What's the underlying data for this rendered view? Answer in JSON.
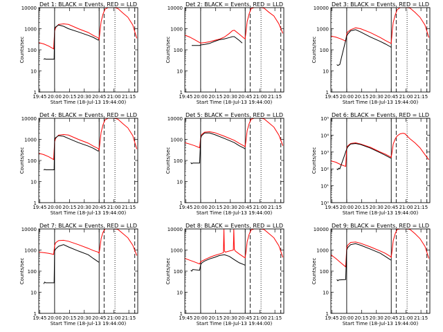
{
  "figure": {
    "xlabel": "Start Time (18-Jul-13 19:44:00)",
    "ylabel": "Counts/sec",
    "x_ticks": [
      "19:45",
      "20:00",
      "20:15",
      "20:30",
      "20:45",
      "21:00",
      "21:15"
    ],
    "x_tick_values": [
      1,
      16,
      31,
      46,
      61,
      76,
      91
    ],
    "x_range": [
      0,
      100
    ],
    "markers": {
      "solid_x": [
        16,
        61
      ],
      "dashed_x": [
        66,
        97
      ],
      "dotted_x": [
        77
      ]
    },
    "colors": {
      "events": "#000000",
      "lld": "#ff0000",
      "axes": "#000000"
    }
  },
  "chart_data": [
    {
      "type": "line",
      "title": "Det 1: BLACK = Events, RED = LLD",
      "yscale": "log",
      "ylim": [
        1,
        10000
      ],
      "y_ticks": [
        "1",
        "10",
        "100",
        "1000",
        "10000"
      ],
      "y_tick_values": [
        1,
        10,
        100,
        1000,
        10000
      ],
      "events_x": [
        5,
        6,
        7,
        15.5,
        16,
        17,
        20,
        25,
        30,
        40,
        50,
        55,
        60,
        61,
        62
      ],
      "events_y": [
        35,
        38,
        36,
        36,
        1000,
        1200,
        1500,
        1300,
        1000,
        700,
        480,
        390,
        290,
        300,
        null
      ],
      "series": [
        {
          "name": "RED = LLD",
          "x": [
            0,
            5,
            10,
            15,
            16,
            17,
            20,
            25,
            30,
            40,
            50,
            55,
            60,
            61,
            62,
            63,
            65,
            67,
            70,
            73,
            75,
            77,
            80,
            85,
            90,
            95,
            99
          ],
          "y": [
            220,
            190,
            150,
            110,
            750,
            1100,
            1600,
            1700,
            1600,
            1000,
            660,
            480,
            370,
            300,
            900,
            2200,
            5000,
            8500,
            10000,
            10000,
            10000,
            10000,
            9000,
            5500,
            3500,
            1500,
            350
          ]
        }
      ]
    },
    {
      "type": "line",
      "title": "Det 2: BLACK = Events, RED = LLD",
      "yscale": "log",
      "ylim": [
        1,
        10000
      ],
      "y_ticks": [
        "1",
        "10",
        "100",
        "1000",
        "10000"
      ],
      "y_tick_values": [
        1,
        10,
        100,
        1000,
        10000
      ],
      "events_x": [
        7,
        15,
        16,
        20,
        25,
        30,
        35,
        40,
        45,
        48,
        50,
        55,
        58
      ],
      "events_y": [
        160,
        160,
        170,
        180,
        200,
        250,
        300,
        330,
        380,
        420,
        420,
        280,
        210
      ],
      "series": [
        {
          "name": "RED = LLD",
          "x": [
            0,
            5,
            10,
            15,
            16,
            20,
            25,
            30,
            35,
            40,
            45,
            48,
            50,
            55,
            60,
            61,
            62,
            63,
            65,
            67,
            70,
            73,
            75,
            77,
            80,
            85,
            90,
            95,
            99
          ],
          "y": [
            500,
            400,
            300,
            220,
            210,
            220,
            240,
            280,
            320,
            400,
            600,
            800,
            850,
            550,
            350,
            330,
            900,
            2200,
            5000,
            9000,
            10000,
            10000,
            10000,
            10000,
            9500,
            6000,
            4000,
            1700,
            600
          ]
        }
      ]
    },
    {
      "type": "line",
      "title": "Det 3: BLACK = Events, RED = LLD",
      "yscale": "log",
      "ylim": [
        1,
        10000
      ],
      "y_ticks": [
        "1",
        "10",
        "100",
        "1000",
        "10000"
      ],
      "y_tick_values": [
        1,
        10,
        100,
        1000,
        10000
      ],
      "events_x": [
        6,
        7,
        8,
        9,
        16,
        17,
        20,
        25,
        30,
        40,
        50,
        55,
        60,
        61
      ],
      "events_y": [
        20,
        18,
        19,
        20,
        450,
        550,
        800,
        900,
        700,
        400,
        250,
        190,
        140,
        130
      ],
      "series": [
        {
          "name": "RED = LLD",
          "x": [
            0,
            5,
            10,
            15,
            16,
            17,
            20,
            25,
            30,
            40,
            50,
            55,
            60,
            61,
            62,
            63,
            65,
            67,
            70,
            73,
            75,
            77,
            80,
            85,
            90,
            95,
            99
          ],
          "y": [
            450,
            400,
            330,
            260,
            550,
            700,
            900,
            1100,
            1000,
            650,
            380,
            280,
            210,
            200,
            800,
            2000,
            4500,
            8000,
            10000,
            10000,
            10000,
            10000,
            9500,
            6000,
            3500,
            1500,
            380
          ]
        }
      ]
    },
    {
      "type": "line",
      "title": "Det 4: BLACK = Events, RED = LLD",
      "yscale": "log",
      "ylim": [
        1,
        10000
      ],
      "y_ticks": [
        "1",
        "10",
        "100",
        "1000",
        "10000"
      ],
      "y_tick_values": [
        1,
        10,
        100,
        1000,
        10000
      ],
      "events_x": [
        5,
        6,
        7,
        15.5,
        16,
        17,
        20,
        25,
        30,
        40,
        50,
        55,
        60,
        61,
        62
      ],
      "events_y": [
        35,
        38,
        36,
        36,
        1000,
        1200,
        1500,
        1400,
        1100,
        700,
        480,
        380,
        280,
        300,
        null
      ],
      "series": [
        {
          "name": "RED = LLD",
          "x": [
            0,
            5,
            10,
            15,
            16,
            17,
            20,
            25,
            30,
            40,
            50,
            55,
            60,
            61,
            62,
            63,
            65,
            67,
            70,
            73,
            75,
            77,
            80,
            85,
            90,
            95,
            99
          ],
          "y": [
            220,
            190,
            150,
            110,
            750,
            1100,
            1600,
            1700,
            1600,
            1000,
            660,
            480,
            370,
            300,
            900,
            2200,
            5000,
            8500,
            10000,
            10000,
            10000,
            10000,
            9000,
            5500,
            3500,
            1500,
            350
          ]
        }
      ]
    },
    {
      "type": "line",
      "title": "Det 5: BLACK = Events, RED = LLD",
      "yscale": "log",
      "ylim": [
        1,
        10000
      ],
      "y_ticks": [
        "1",
        "10",
        "100",
        "1000",
        "10000"
      ],
      "y_tick_values": [
        1,
        10,
        100,
        1000,
        10000
      ],
      "events_x": [
        6,
        7,
        8,
        15,
        16,
        17,
        20,
        25,
        30,
        40,
        50,
        55,
        60,
        61
      ],
      "events_y": [
        80,
        70,
        75,
        75,
        1100,
        1500,
        2000,
        2000,
        1700,
        1100,
        700,
        500,
        380,
        350
      ],
      "series": [
        {
          "name": "RED = LLD",
          "x": [
            0,
            5,
            10,
            15,
            16,
            17,
            20,
            25,
            30,
            40,
            50,
            55,
            60,
            61,
            62,
            63,
            65,
            67,
            70,
            73,
            75,
            77,
            80,
            85,
            90,
            95,
            99
          ],
          "y": [
            700,
            600,
            500,
            400,
            1200,
            1700,
            2200,
            2300,
            2100,
            1400,
            900,
            650,
            480,
            450,
            1100,
            2600,
            5500,
            9000,
            10000,
            10000,
            10000,
            10000,
            9500,
            6000,
            3800,
            1600,
            500
          ]
        }
      ]
    },
    {
      "type": "line",
      "title": "Det 6: BLACK = Events, RED = LLD",
      "yscale": "log",
      "ylim": [
        1,
        100000
      ],
      "y_ticks": [
        "10⁰",
        "10¹",
        "10²",
        "10³",
        "10⁴",
        "10⁵"
      ],
      "y_tick_values": [
        1,
        10,
        100,
        1000,
        10000,
        100000
      ],
      "events_x": [
        6,
        7,
        8,
        9,
        16,
        17,
        20,
        25,
        30,
        40,
        50,
        55,
        60,
        61
      ],
      "events_y": [
        100,
        90,
        110,
        100,
        1500,
        2000,
        3000,
        3200,
        2800,
        1700,
        900,
        650,
        450,
        430
      ],
      "series": [
        {
          "name": "RED = LLD",
          "x": [
            0,
            5,
            10,
            15,
            16,
            17,
            20,
            25,
            30,
            40,
            50,
            55,
            60,
            61,
            62,
            63,
            65,
            67,
            70,
            73,
            75,
            77,
            80,
            85,
            90,
            95,
            99
          ],
          "y": [
            300,
            250,
            180,
            140,
            1700,
            2300,
            3200,
            3500,
            3000,
            1900,
            1000,
            750,
            520,
            480,
            1200,
            3000,
            6000,
            9000,
            12000,
            13000,
            12000,
            9000,
            6000,
            3500,
            1800,
            700,
            350
          ]
        }
      ]
    },
    {
      "type": "line",
      "title": "Det 7: BLACK = Events, RED = LLD",
      "yscale": "log",
      "ylim": [
        1,
        10000
      ],
      "y_ticks": [
        "1",
        "10",
        "100",
        "1000",
        "10000"
      ],
      "y_tick_values": [
        1,
        10,
        100,
        1000,
        10000
      ],
      "events_x": [
        5,
        6,
        7,
        15.5,
        16,
        17,
        20,
        25,
        30,
        40,
        50,
        55,
        60,
        61
      ],
      "events_y": [
        25,
        30,
        28,
        28,
        900,
        1100,
        1500,
        1800,
        1400,
        900,
        600,
        400,
        280,
        260
      ],
      "series": [
        {
          "name": "RED = LLD",
          "x": [
            0,
            5,
            10,
            15,
            16,
            17,
            20,
            25,
            30,
            40,
            50,
            55,
            60,
            61,
            62,
            63,
            65,
            67,
            70,
            73,
            75,
            77,
            80,
            85,
            90,
            95,
            99
          ],
          "y": [
            800,
            750,
            700,
            620,
            1600,
            2200,
            2800,
            2900,
            2600,
            1800,
            1200,
            950,
            800,
            700,
            1500,
            3500,
            7000,
            10000,
            10000,
            10000,
            10000,
            10000,
            9500,
            6000,
            3800,
            1700,
            550
          ]
        }
      ]
    },
    {
      "type": "line",
      "title": "Det 8: BLACK = Events, RED = LLD",
      "yscale": "log",
      "ylim": [
        1,
        10000
      ],
      "y_ticks": [
        "1",
        "10",
        "100",
        "1000",
        "10000"
      ],
      "y_tick_values": [
        1,
        10,
        100,
        1000,
        10000
      ],
      "events_x": [
        6,
        7,
        8,
        15,
        16,
        17,
        20,
        25,
        30,
        35,
        40,
        45,
        50,
        55,
        60,
        61
      ],
      "events_y": [
        110,
        100,
        120,
        110,
        200,
        240,
        300,
        380,
        450,
        550,
        600,
        500,
        350,
        250,
        200,
        190
      ],
      "series": [
        {
          "name": "RED = LLD",
          "x": [
            0,
            5,
            10,
            15,
            16,
            20,
            25,
            30,
            35,
            39,
            39.5,
            40,
            41,
            45,
            49,
            49.5,
            50,
            51,
            55,
            60,
            61,
            62,
            63,
            65,
            67,
            70,
            73,
            75,
            77,
            80,
            85,
            90,
            95,
            99
          ],
          "y": [
            400,
            330,
            270,
            220,
            280,
            350,
            450,
            550,
            650,
            750,
            10000,
            900,
            800,
            900,
            1000,
            10000,
            1100,
            900,
            650,
            450,
            430,
            1000,
            2500,
            5500,
            9000,
            10000,
            10000,
            10000,
            10000,
            9500,
            6000,
            3800,
            1600,
            450
          ]
        }
      ]
    },
    {
      "type": "line",
      "title": "Det 9: BLACK = Events, RED = LLD",
      "yscale": "log",
      "ylim": [
        1,
        10000
      ],
      "y_ticks": [
        "1",
        "10",
        "100",
        "1000",
        "10000"
      ],
      "y_tick_values": [
        1,
        10,
        100,
        1000,
        10000
      ],
      "events_x": [
        6,
        7,
        8,
        15,
        16,
        17,
        20,
        25,
        30,
        40,
        50,
        55,
        60,
        61
      ],
      "events_y": [
        40,
        35,
        38,
        40,
        1000,
        1300,
        1800,
        2000,
        1700,
        1100,
        700,
        500,
        350,
        330
      ],
      "series": [
        {
          "name": "RED = LLD",
          "x": [
            0,
            5,
            10,
            15,
            16,
            17,
            20,
            25,
            30,
            40,
            50,
            55,
            60,
            61,
            62,
            63,
            65,
            67,
            70,
            73,
            75,
            77,
            80,
            85,
            90,
            95,
            99
          ],
          "y": [
            600,
            400,
            250,
            160,
            1200,
            1700,
            2300,
            2400,
            2100,
            1400,
            900,
            700,
            500,
            450,
            1100,
            2800,
            6000,
            9500,
            10000,
            10000,
            10000,
            10000,
            9500,
            6000,
            3500,
            1500,
            400
          ]
        }
      ]
    }
  ]
}
